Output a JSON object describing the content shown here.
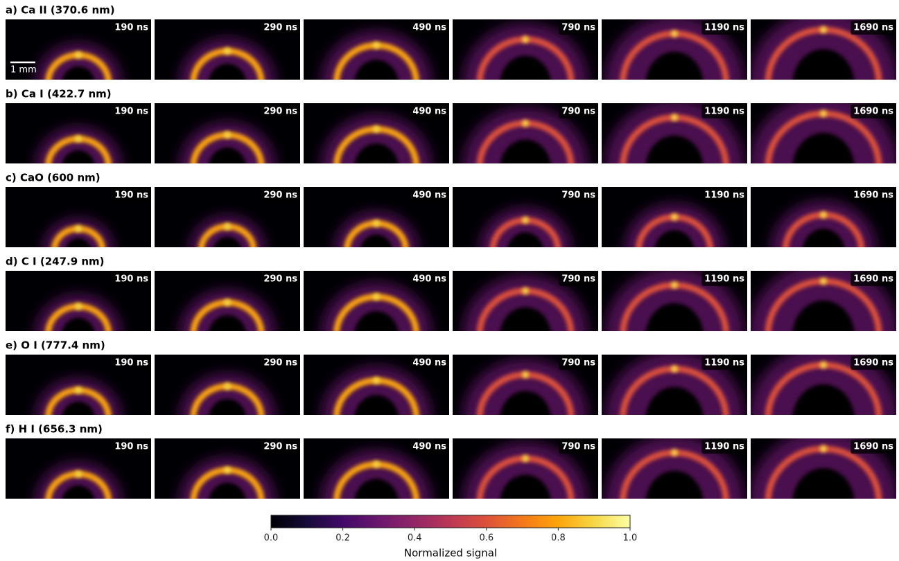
{
  "chart_data": {
    "type": "image_grid",
    "rows": [
      {
        "title": "a) Ca II (370.6 nm)",
        "times": [
          "190 ns",
          "290 ns",
          "490 ns",
          "790 ns",
          "1190 ns",
          "1690 ns"
        ]
      },
      {
        "title": "b) Ca I (422.7 nm)",
        "times": [
          "190 ns",
          "290 ns",
          "490 ns",
          "790 ns",
          "1190 ns",
          "1690 ns"
        ]
      },
      {
        "title": "c) CaO (600 nm)",
        "times": [
          "190 ns",
          "290 ns",
          "490 ns",
          "790 ns",
          "1190 ns",
          "1690 ns"
        ]
      },
      {
        "title": "d) C I (247.9 nm)",
        "times": [
          "190 ns",
          "290 ns",
          "490 ns",
          "790 ns",
          "1190 ns",
          "1690 ns"
        ]
      },
      {
        "title": "e) O I (777.4 nm)",
        "times": [
          "190 ns",
          "290 ns",
          "490 ns",
          "790 ns",
          "1190 ns",
          "1690 ns"
        ]
      },
      {
        "title": "f) H I (656.3 nm)",
        "times": [
          "190 ns",
          "290 ns",
          "490 ns",
          "790 ns",
          "1190 ns",
          "1690 ns"
        ]
      }
    ],
    "scale_bar": "1 mm",
    "colorbar": {
      "label": "Normalized signal",
      "colormap": "inferno",
      "lim": [
        0,
        1
      ],
      "ticks": [
        {
          "value": 0,
          "label": "0.0"
        },
        0.2,
        0.4,
        0.6,
        0.8,
        {
          "value": 1,
          "label": "1.0"
        }
      ]
    }
  }
}
